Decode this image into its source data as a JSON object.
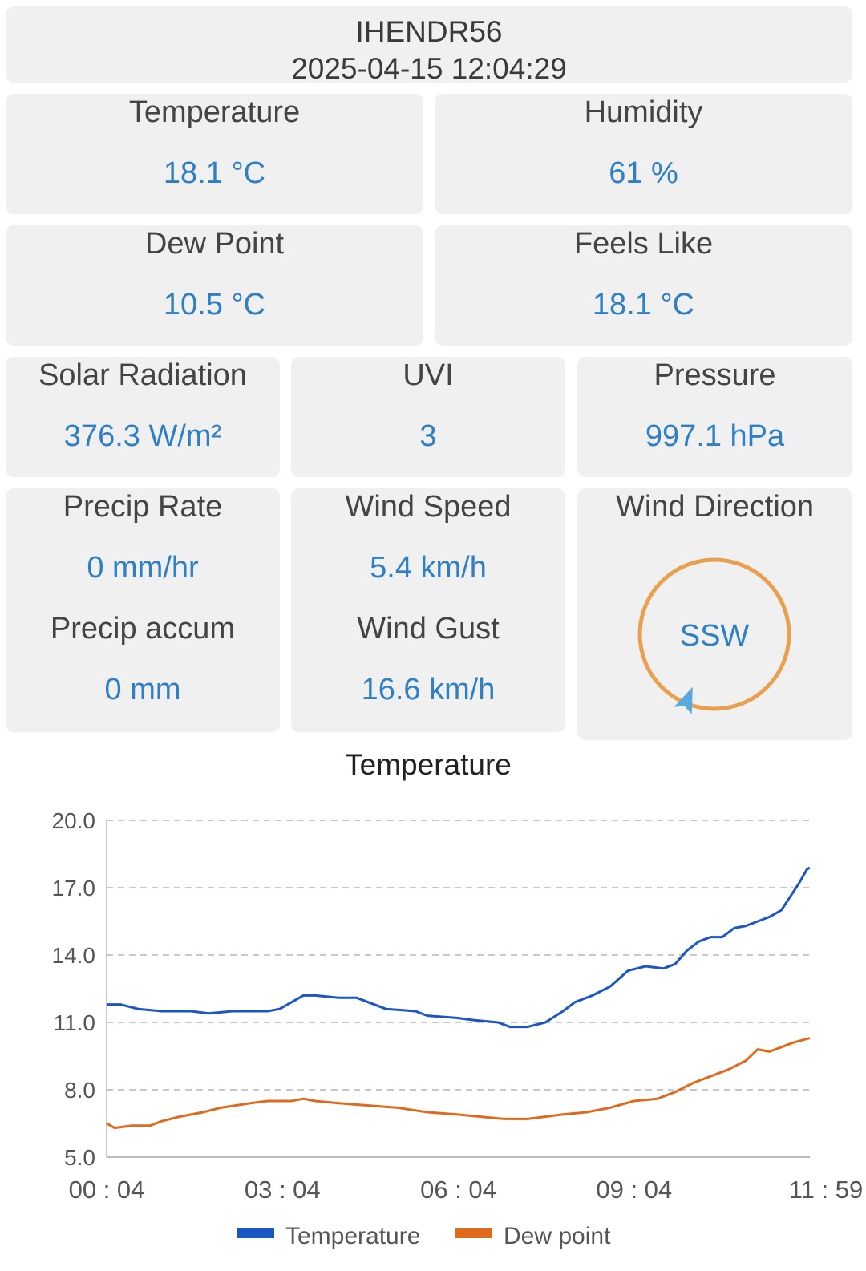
{
  "header": {
    "station": "IHENDR56",
    "timestamp": "2025-04-15 12:04:29"
  },
  "cards": {
    "temperature": {
      "label": "Temperature",
      "value": "18.1 °C"
    },
    "humidity": {
      "label": "Humidity",
      "value": "61 %"
    },
    "dew_point": {
      "label": "Dew Point",
      "value": "10.5 °C"
    },
    "feels_like": {
      "label": "Feels Like",
      "value": "18.1 °C"
    },
    "solar_radiation": {
      "label": "Solar Radiation",
      "value": "376.3 W/m²"
    },
    "uvi": {
      "label": "UVI",
      "value": "3"
    },
    "pressure": {
      "label": "Pressure",
      "value": "997.1 hPa"
    },
    "precip_rate": {
      "label": "Precip Rate",
      "value": "0 mm/hr"
    },
    "precip_accum": {
      "label": "Precip accum",
      "value": "0 mm"
    },
    "wind_speed": {
      "label": "Wind Speed",
      "value": "5.4 km/h"
    },
    "wind_gust": {
      "label": "Wind Gust",
      "value": "16.6 km/h"
    },
    "wind_direction": {
      "label": "Wind Direction",
      "value": "SSW",
      "degrees": 202.5,
      "ring_color": "#e8a050",
      "arrow_color": "#5aa8e0"
    }
  },
  "chart_data": {
    "type": "line",
    "title": "Temperature",
    "ylim": [
      5.0,
      20.0
    ],
    "yticks": [
      "5.0",
      "8.0",
      "11.0",
      "14.0",
      "17.0",
      "20.0"
    ],
    "xticks": [
      "00 : 04",
      "03 : 04",
      "06 : 04",
      "09 : 04",
      "11 : 59"
    ],
    "xlim_hours": [
      0.067,
      11.983
    ],
    "grid": true,
    "legend_position": "bottom",
    "series": [
      {
        "name": "Temperature",
        "color": "#1a56c4",
        "points": [
          [
            0.07,
            11.8
          ],
          [
            0.3,
            11.8
          ],
          [
            0.6,
            11.6
          ],
          [
            1.0,
            11.5
          ],
          [
            1.5,
            11.5
          ],
          [
            1.8,
            11.4
          ],
          [
            2.2,
            11.5
          ],
          [
            2.8,
            11.5
          ],
          [
            3.0,
            11.6
          ],
          [
            3.2,
            11.9
          ],
          [
            3.4,
            12.2
          ],
          [
            3.6,
            12.2
          ],
          [
            4.0,
            12.1
          ],
          [
            4.3,
            12.1
          ],
          [
            4.5,
            11.9
          ],
          [
            4.8,
            11.6
          ],
          [
            5.3,
            11.5
          ],
          [
            5.5,
            11.3
          ],
          [
            6.0,
            11.2
          ],
          [
            6.3,
            11.1
          ],
          [
            6.7,
            11.0
          ],
          [
            6.9,
            10.8
          ],
          [
            7.2,
            10.8
          ],
          [
            7.5,
            11.0
          ],
          [
            7.8,
            11.5
          ],
          [
            8.0,
            11.9
          ],
          [
            8.3,
            12.2
          ],
          [
            8.6,
            12.6
          ],
          [
            8.9,
            13.3
          ],
          [
            9.2,
            13.5
          ],
          [
            9.5,
            13.4
          ],
          [
            9.7,
            13.6
          ],
          [
            9.9,
            14.2
          ],
          [
            10.1,
            14.6
          ],
          [
            10.3,
            14.8
          ],
          [
            10.5,
            14.8
          ],
          [
            10.7,
            15.2
          ],
          [
            10.9,
            15.3
          ],
          [
            11.1,
            15.5
          ],
          [
            11.3,
            15.7
          ],
          [
            11.5,
            16.0
          ],
          [
            11.65,
            16.6
          ],
          [
            11.8,
            17.2
          ],
          [
            11.93,
            17.8
          ],
          [
            11.98,
            17.9
          ]
        ]
      },
      {
        "name": "Dew point",
        "color": "#e06a1c",
        "points": [
          [
            0.07,
            6.5
          ],
          [
            0.2,
            6.3
          ],
          [
            0.5,
            6.4
          ],
          [
            0.8,
            6.4
          ],
          [
            1.0,
            6.6
          ],
          [
            1.3,
            6.8
          ],
          [
            1.7,
            7.0
          ],
          [
            2.0,
            7.2
          ],
          [
            2.5,
            7.4
          ],
          [
            2.8,
            7.5
          ],
          [
            3.2,
            7.5
          ],
          [
            3.4,
            7.6
          ],
          [
            3.6,
            7.5
          ],
          [
            4.0,
            7.4
          ],
          [
            4.5,
            7.3
          ],
          [
            5.0,
            7.2
          ],
          [
            5.5,
            7.0
          ],
          [
            6.0,
            6.9
          ],
          [
            6.4,
            6.8
          ],
          [
            6.8,
            6.7
          ],
          [
            7.2,
            6.7
          ],
          [
            7.5,
            6.8
          ],
          [
            7.8,
            6.9
          ],
          [
            8.2,
            7.0
          ],
          [
            8.6,
            7.2
          ],
          [
            9.0,
            7.5
          ],
          [
            9.4,
            7.6
          ],
          [
            9.7,
            7.9
          ],
          [
            10.0,
            8.3
          ],
          [
            10.3,
            8.6
          ],
          [
            10.6,
            8.9
          ],
          [
            10.9,
            9.3
          ],
          [
            11.1,
            9.8
          ],
          [
            11.3,
            9.7
          ],
          [
            11.5,
            9.9
          ],
          [
            11.7,
            10.1
          ],
          [
            11.98,
            10.3
          ]
        ]
      }
    ]
  }
}
